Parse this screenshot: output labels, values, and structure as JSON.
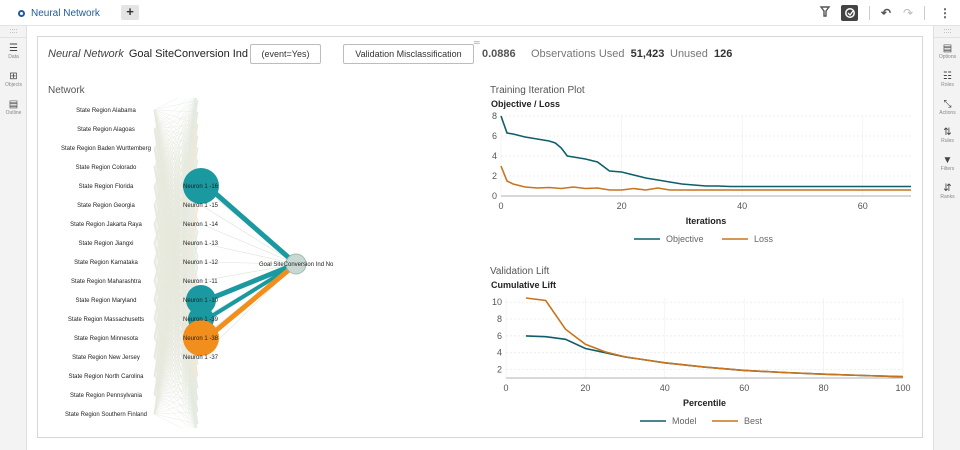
{
  "tab": {
    "title": "Neural Network",
    "add_label": "+"
  },
  "toolbar": {
    "icons": [
      "pin-icon",
      "auto-icon",
      "undo-icon",
      "redo-icon",
      "more-icon"
    ]
  },
  "left_rail": {
    "grip": "::::",
    "items": [
      {
        "label": "Data",
        "icon": "☰"
      },
      {
        "label": "Objects",
        "icon": "⊞"
      },
      {
        "label": "Outline",
        "icon": "▤"
      }
    ]
  },
  "right_rail": {
    "grip": "::::",
    "items": [
      {
        "label": "Options",
        "icon": "▤"
      },
      {
        "label": "Roles",
        "icon": "☷"
      },
      {
        "label": "Actions",
        "icon": "⤡"
      },
      {
        "label": "Rules",
        "icon": "⇅"
      },
      {
        "label": "Filters",
        "icon": "▼"
      },
      {
        "label": "Ranks",
        "icon": "⇵"
      }
    ]
  },
  "header": {
    "model_type": "Neural Network",
    "target": "Goal SiteConversion Ind",
    "event_button": "(event=Yes)",
    "metric_button": "Validation Misclassification",
    "metric_value": "0.0886",
    "observations_label": "Observations Used",
    "observations_value": "51,423",
    "unused_label": "Unused",
    "unused_value": "126"
  },
  "network": {
    "title": "Network",
    "inputs": [
      "State Region Alabama",
      "State Region Alagoas",
      "State Region Baden Wurttemberg",
      "State Region Colorado",
      "State Region Florida",
      "State Region Georgia",
      "State Region Jakarta Raya",
      "State Region Jiangxi",
      "State Region Karnataka",
      "State Region Maharashtra",
      "State Region Maryland",
      "State Region Massachusetts",
      "State Region Minnesota",
      "State Region New Jersey",
      "State Region North Carolina",
      "State Region Pennsylvania",
      "State Region Southern Finland"
    ],
    "neurons": [
      "Neuron 1 -16",
      "Neuron 1 -15",
      "Neuron 1 -14",
      "Neuron 1 -13",
      "Neuron 1 -12",
      "Neuron 1 -11",
      "Neuron 1 -10",
      "Neuron 1 -39",
      "Neuron 1 -38",
      "Neuron 1 -37"
    ],
    "output": "Goal SiteConversion Ind No",
    "colors": {
      "positive": "#1a9aa0",
      "negative": "#f28e1c",
      "edge": "#c9d4c0"
    }
  },
  "chart_data": [
    {
      "type": "line",
      "title": "Training Iteration Plot",
      "subtitle": "Objective / Loss",
      "xlabel": "Iterations",
      "ylabel": "",
      "xlim": [
        0,
        68
      ],
      "ylim": [
        0,
        8
      ],
      "xticks": [
        "0",
        "20",
        "40",
        "60"
      ],
      "yticks": [
        "0",
        "2",
        "4",
        "6",
        "8"
      ],
      "series": [
        {
          "name": "Objective",
          "color": "#0f5e6a",
          "x": [
            0,
            1,
            2,
            4,
            6,
            8,
            9,
            10,
            11,
            12,
            14,
            16,
            18,
            20,
            22,
            24,
            26,
            28,
            30,
            32,
            34,
            36,
            38,
            40,
            45,
            50,
            55,
            60,
            68
          ],
          "values": [
            8.0,
            6.3,
            6.2,
            5.9,
            5.7,
            5.5,
            5.3,
            4.8,
            4.0,
            3.9,
            3.7,
            3.4,
            2.5,
            2.4,
            2.1,
            1.8,
            1.6,
            1.4,
            1.2,
            1.1,
            1.0,
            1.0,
            0.95,
            0.95,
            0.95,
            0.95,
            0.95,
            0.95,
            0.95
          ]
        },
        {
          "name": "Loss",
          "color": "#c8741d",
          "x": [
            0,
            1,
            2,
            4,
            6,
            8,
            10,
            12,
            14,
            16,
            18,
            20,
            22,
            24,
            26,
            28,
            30,
            40,
            50,
            60,
            68
          ],
          "values": [
            3.0,
            1.5,
            1.2,
            0.9,
            0.8,
            0.85,
            0.75,
            0.9,
            0.75,
            0.8,
            0.6,
            0.6,
            0.75,
            0.6,
            0.8,
            0.6,
            0.6,
            0.6,
            0.6,
            0.6,
            0.6
          ]
        }
      ]
    },
    {
      "type": "line",
      "title": "Validation Lift",
      "subtitle": "Cumulative Lift",
      "xlabel": "Percentile",
      "ylabel": "",
      "xlim": [
        0,
        100
      ],
      "ylim": [
        1,
        10.5
      ],
      "xticks": [
        "0",
        "20",
        "40",
        "60",
        "80",
        "100"
      ],
      "yticks": [
        "2",
        "4",
        "6",
        "8",
        "10"
      ],
      "series": [
        {
          "name": "Model",
          "color": "#0f5e6a",
          "x": [
            5,
            10,
            15,
            20,
            25,
            30,
            40,
            50,
            60,
            70,
            80,
            90,
            100
          ],
          "values": [
            6.0,
            5.9,
            5.6,
            4.5,
            4.0,
            3.5,
            2.8,
            2.3,
            1.9,
            1.65,
            1.45,
            1.3,
            1.15
          ]
        },
        {
          "name": "Best",
          "color": "#c8741d",
          "x": [
            5,
            10,
            15,
            20,
            25,
            30,
            40,
            50,
            60,
            70,
            80,
            90,
            100
          ],
          "values": [
            10.5,
            10.2,
            6.8,
            5.0,
            4.1,
            3.5,
            2.8,
            2.3,
            1.9,
            1.65,
            1.45,
            1.3,
            1.15
          ]
        }
      ]
    }
  ]
}
